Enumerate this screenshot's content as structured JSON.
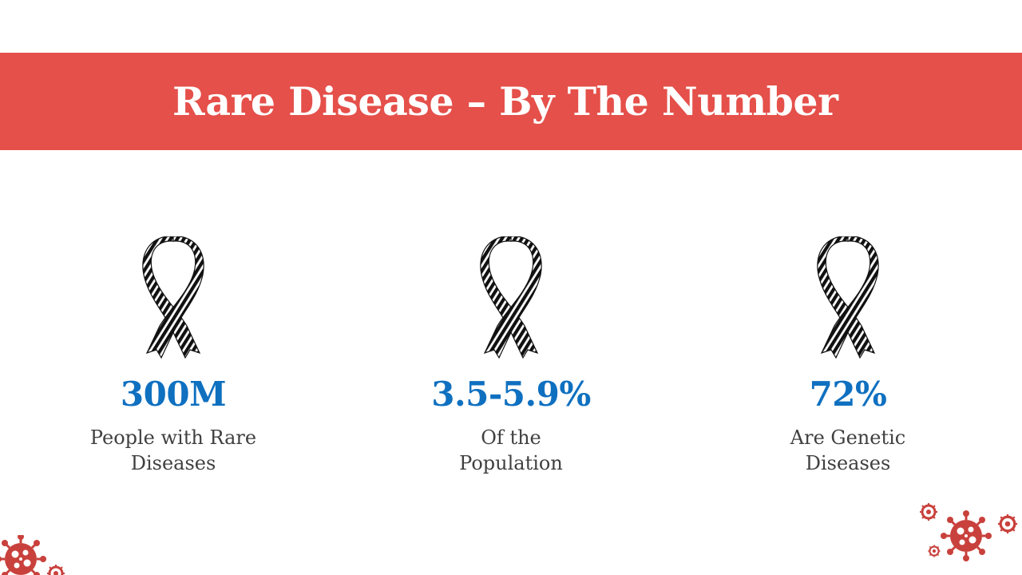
{
  "slide": {
    "title": "Rare Disease – By The Number"
  },
  "colors": {
    "banner": "#e5504a",
    "value": "#0f70c0",
    "label": "#404040",
    "decoration": "#c9413c"
  },
  "icons": {
    "stat": "awareness-ribbon-icon",
    "decoration": "virus-icon"
  },
  "stats": [
    {
      "value": "300M",
      "label_line1": "People with Rare",
      "label_line2": "Diseases"
    },
    {
      "value": "3.5-5.9%",
      "label_line1": "Of the",
      "label_line2": "Population"
    },
    {
      "value": "72%",
      "label_line1": "Are Genetic",
      "label_line2": "Diseases"
    }
  ]
}
